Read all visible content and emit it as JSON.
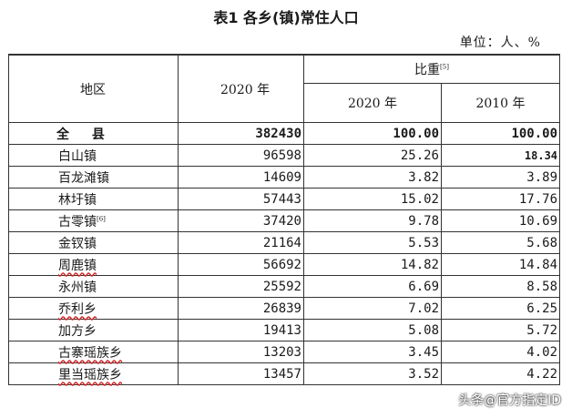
{
  "title": "表1 各乡(镇)常住人口",
  "unit": "单位：人、%",
  "header": {
    "region": "地区",
    "pop2020": "2020 年",
    "share": "比重",
    "share_note": "[5]",
    "share2020": "2020 年",
    "share2010": "2010 年"
  },
  "rows": [
    {
      "region": "全 县",
      "pop": "382430",
      "s2020": "100.00",
      "s2010": "100.00",
      "note": ""
    },
    {
      "region": "白山镇",
      "pop": "96598",
      "s2020": "25.26",
      "s2010": "18.34",
      "note": ""
    },
    {
      "region": "百龙滩镇",
      "pop": "14609",
      "s2020": "3.82",
      "s2010": "3.89",
      "note": ""
    },
    {
      "region": "林圩镇",
      "pop": "57443",
      "s2020": "15.02",
      "s2010": "17.76",
      "note": ""
    },
    {
      "region": "古零镇",
      "pop": "37420",
      "s2020": "9.78",
      "s2010": "10.69",
      "note": "[6]"
    },
    {
      "region": "金钗镇",
      "pop": "21164",
      "s2020": "5.53",
      "s2010": "5.68",
      "note": ""
    },
    {
      "region": "周鹿镇",
      "pop": "56692",
      "s2020": "14.82",
      "s2010": "14.84",
      "note": ""
    },
    {
      "region": "永州镇",
      "pop": "25592",
      "s2020": "6.69",
      "s2010": "8.58",
      "note": ""
    },
    {
      "region": "乔利乡",
      "pop": "26839",
      "s2020": "7.02",
      "s2010": "6.25",
      "note": ""
    },
    {
      "region": "加方乡",
      "pop": "19413",
      "s2020": "5.08",
      "s2010": "5.72",
      "note": ""
    },
    {
      "region": "古寨瑶族乡",
      "pop": "13203",
      "s2020": "3.45",
      "s2010": "4.02",
      "note": ""
    },
    {
      "region": "里当瑶族乡",
      "pop": "13457",
      "s2020": "3.52",
      "s2010": "4.22",
      "note": ""
    }
  ],
  "watermark": "头条@官方指定ID"
}
